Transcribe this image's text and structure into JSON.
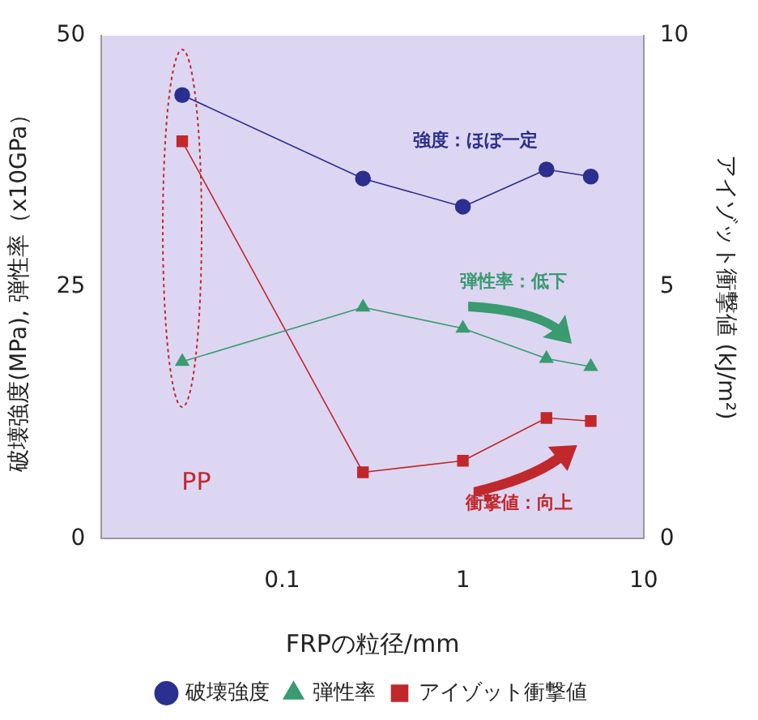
{
  "chart_data": {
    "type": "line",
    "xlabel": "FRPの粒径/mm",
    "ylabel": "破壊強度(MPa), 弾性率（x10GPa）",
    "y2label": "アイゾット衝撃値 (kJ/m²)",
    "log": "x",
    "xlim": [
      0.01,
      10
    ],
    "xticks": [
      0.1,
      1,
      10
    ],
    "ylim": [
      0,
      50
    ],
    "yticks": [
      0,
      25,
      50
    ],
    "y2lim": [
      0,
      10
    ],
    "y2ticks": [
      0,
      5,
      10
    ],
    "x": [
      0.028,
      0.28,
      1.0,
      2.9,
      5.1
    ],
    "marker": "circle",
    "legend": "bottom",
    "grid": false,
    "series": [
      {
        "name": "破壊強度",
        "color": "#2b2f8f",
        "marker": "circle",
        "values": [
          44.1,
          35.8,
          33.0,
          36.7,
          36.0
        ]
      },
      {
        "name": "弾性率",
        "color": "#3a9a70",
        "marker": "triangle",
        "values": [
          17.6,
          23.0,
          20.9,
          17.9,
          17.1
        ]
      },
      {
        "name": "アイゾット衝撃値",
        "color": "#c0282c",
        "marker": "square",
        "axis": "y2",
        "values": [
          7.9,
          1.32,
          1.55,
          2.4,
          2.34
        ]
      }
    ],
    "annotations": [
      "強度：ほぼ一定",
      "弾性率：低下",
      "衝撃値：向上",
      "PP"
    ]
  }
}
